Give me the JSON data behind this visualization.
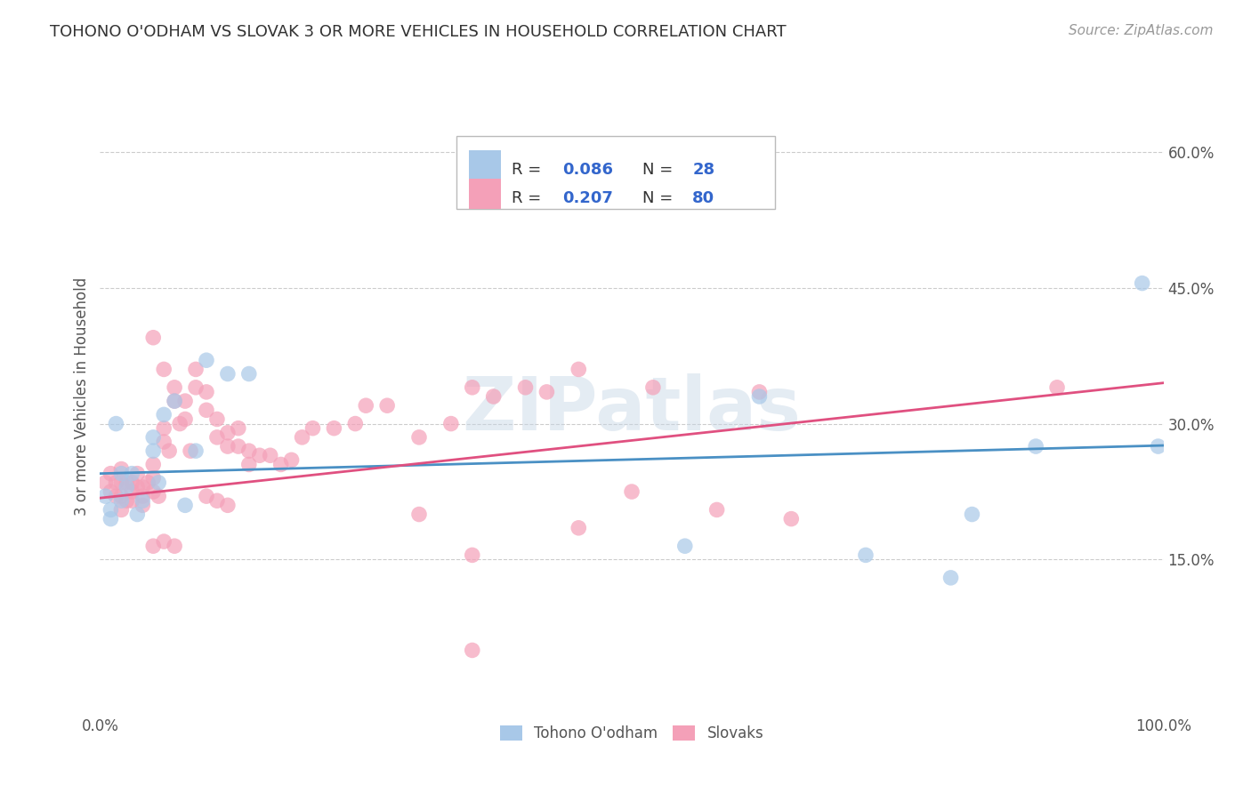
{
  "title": "TOHONO O'ODHAM VS SLOVAK 3 OR MORE VEHICLES IN HOUSEHOLD CORRELATION CHART",
  "source": "Source: ZipAtlas.com",
  "ylabel": "3 or more Vehicles in Household",
  "watermark": "ZIPatlas",
  "xlim": [
    0.0,
    1.0
  ],
  "ylim": [
    -0.02,
    0.68
  ],
  "xtick_labels": [
    "0.0%",
    "100.0%"
  ],
  "ytick_labels": [
    "15.0%",
    "30.0%",
    "45.0%",
    "60.0%"
  ],
  "ytick_values": [
    0.15,
    0.3,
    0.45,
    0.6
  ],
  "legend_label1": "Tohono O'odham",
  "legend_label2": "Slovaks",
  "blue_color": "#a8c8e8",
  "pink_color": "#f4a0b8",
  "blue_line_color": "#4a90c4",
  "pink_line_color": "#e05080",
  "title_color": "#333333",
  "legend_text_color": "#3366cc",
  "background_color": "#ffffff",
  "grid_color": "#cccccc",
  "tohono_x": [
    0.005,
    0.01,
    0.01,
    0.015,
    0.02,
    0.02,
    0.025,
    0.03,
    0.035,
    0.04,
    0.05,
    0.05,
    0.055,
    0.06,
    0.07,
    0.08,
    0.09,
    0.1,
    0.12,
    0.14,
    0.55,
    0.62,
    0.72,
    0.8,
    0.82,
    0.88,
    0.98,
    0.995
  ],
  "tohono_y": [
    0.22,
    0.205,
    0.195,
    0.3,
    0.245,
    0.215,
    0.23,
    0.245,
    0.2,
    0.215,
    0.285,
    0.27,
    0.235,
    0.31,
    0.325,
    0.21,
    0.27,
    0.37,
    0.355,
    0.355,
    0.165,
    0.33,
    0.155,
    0.13,
    0.2,
    0.275,
    0.455,
    0.275
  ],
  "slovak_x": [
    0.005,
    0.01,
    0.01,
    0.015,
    0.015,
    0.02,
    0.02,
    0.02,
    0.02,
    0.025,
    0.025,
    0.03,
    0.03,
    0.03,
    0.035,
    0.035,
    0.04,
    0.04,
    0.04,
    0.045,
    0.05,
    0.05,
    0.05,
    0.055,
    0.06,
    0.06,
    0.065,
    0.07,
    0.07,
    0.075,
    0.08,
    0.08,
    0.085,
    0.09,
    0.09,
    0.1,
    0.1,
    0.11,
    0.11,
    0.12,
    0.12,
    0.13,
    0.13,
    0.14,
    0.14,
    0.15,
    0.16,
    0.17,
    0.18,
    0.19,
    0.2,
    0.22,
    0.24,
    0.25,
    0.27,
    0.3,
    0.33,
    0.35,
    0.37,
    0.4,
    0.42,
    0.45,
    0.5,
    0.52,
    0.58,
    0.62,
    0.65,
    0.1,
    0.11,
    0.12,
    0.05,
    0.06,
    0.07,
    0.3,
    0.35,
    0.05,
    0.06,
    0.35,
    0.45,
    0.9
  ],
  "slovak_y": [
    0.235,
    0.245,
    0.225,
    0.235,
    0.22,
    0.25,
    0.235,
    0.22,
    0.205,
    0.235,
    0.215,
    0.235,
    0.225,
    0.215,
    0.245,
    0.23,
    0.23,
    0.22,
    0.21,
    0.235,
    0.255,
    0.24,
    0.225,
    0.22,
    0.295,
    0.28,
    0.27,
    0.34,
    0.325,
    0.3,
    0.325,
    0.305,
    0.27,
    0.36,
    0.34,
    0.335,
    0.315,
    0.305,
    0.285,
    0.29,
    0.275,
    0.275,
    0.295,
    0.27,
    0.255,
    0.265,
    0.265,
    0.255,
    0.26,
    0.285,
    0.295,
    0.295,
    0.3,
    0.32,
    0.32,
    0.285,
    0.3,
    0.34,
    0.33,
    0.34,
    0.335,
    0.36,
    0.225,
    0.34,
    0.205,
    0.335,
    0.195,
    0.22,
    0.215,
    0.21,
    0.165,
    0.17,
    0.165,
    0.2,
    0.155,
    0.395,
    0.36,
    0.05,
    0.185,
    0.34
  ],
  "blue_line_x0": 0.0,
  "blue_line_y0": 0.245,
  "blue_line_x1": 1.0,
  "blue_line_y1": 0.276,
  "pink_line_x0": 0.0,
  "pink_line_y0": 0.218,
  "pink_line_x1": 1.0,
  "pink_line_y1": 0.345
}
